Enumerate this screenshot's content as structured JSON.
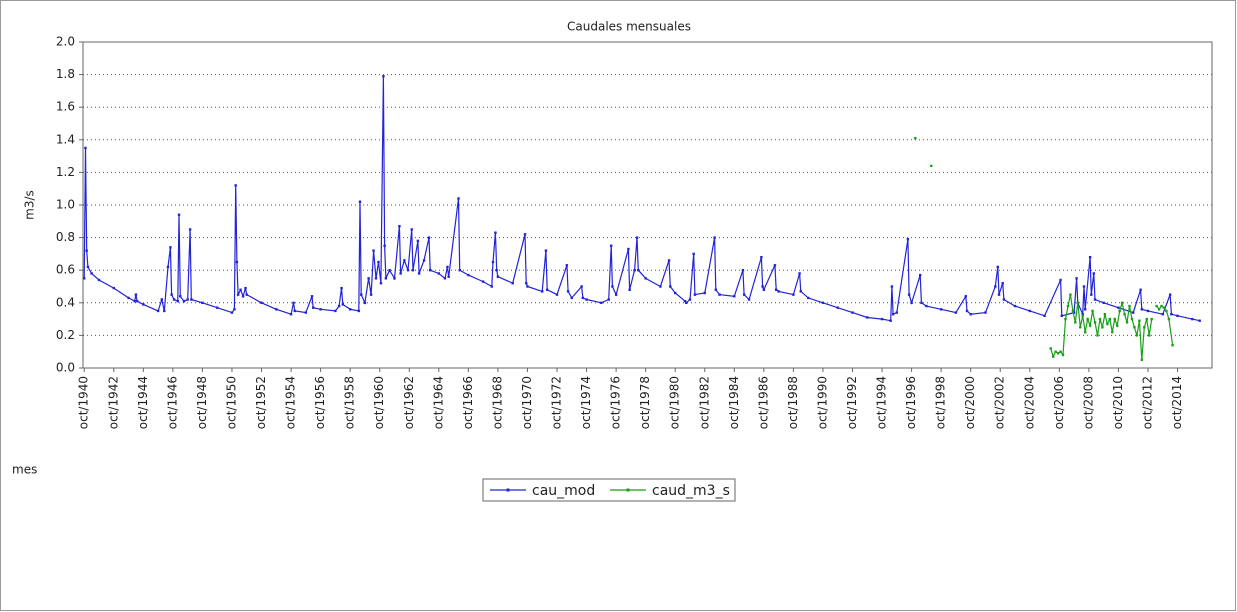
{
  "chart_data": {
    "type": "line",
    "title": "Caudales mensuales",
    "ylabel": "m3/s",
    "xlabel": "mes",
    "xlim": [
      "sep/1940",
      "feb/2017"
    ],
    "xticks": [
      "oct/1940",
      "oct/1942",
      "oct/1944",
      "oct/1946",
      "oct/1948",
      "oct/1950",
      "oct/1952",
      "oct/1954",
      "oct/1956",
      "oct/1958",
      "oct/1960",
      "oct/1962",
      "oct/1964",
      "oct/1966",
      "oct/1968",
      "oct/1970",
      "oct/1972",
      "oct/1974",
      "oct/1976",
      "oct/1978",
      "oct/1980",
      "oct/1982",
      "oct/1984",
      "oct/1986",
      "oct/1988",
      "oct/1990",
      "oct/1992",
      "oct/1994",
      "oct/1996",
      "oct/1998",
      "oct/2000",
      "oct/2002",
      "oct/2004",
      "oct/2006",
      "oct/2008",
      "oct/2010",
      "oct/2012",
      "oct/2014"
    ],
    "ylim": [
      0,
      2
    ],
    "yticks": [
      {
        "value": 0,
        "label": "0.0"
      },
      0.2,
      0.4,
      0.6,
      0.8,
      {
        "value": 1,
        "label": "1.0"
      },
      1.2,
      1.4,
      1.6,
      1.8,
      {
        "value": 2,
        "label": "2.0"
      }
    ],
    "grid": true,
    "legend": "bottom",
    "series": [
      {
        "name": "cau_mod",
        "color": "#2323d8",
        "x": [
          "oct/1940",
          "nov/1940",
          "dic/1940",
          "ene/1941",
          "abr/1941",
          "oct/1941",
          "oct/1942",
          "oct/1943",
          "mar/1944",
          "abr/1944",
          "may/1944",
          "oct/1944",
          "oct/1945",
          "ene/1946",
          "mar/1946",
          "jun/1946",
          "ago/1946",
          "sep/1946",
          "nov/1946",
          "feb/1947",
          "mar/1947",
          "abr/1947",
          "jul/1947",
          "oct/1947",
          "dic/1947",
          "ene/1948",
          "oct/1948",
          "oct/1949",
          "oct/1950",
          "dic/1950",
          "ene/1951",
          "feb/1951",
          "mar/1951",
          "may/1951",
          "jul/1951",
          "sep/1951",
          "oct/1951",
          "oct/1952",
          "oct/1953",
          "oct/1954",
          "dic/1954",
          "ene/1955",
          "oct/1955",
          "mar/1956",
          "abr/1956",
          "oct/1956",
          "oct/1957",
          "ene/1958",
          "mar/1958",
          "abr/1958",
          "oct/1958",
          "may/1959",
          "jun/1959",
          "jul/1959",
          "oct/1959",
          "ene/1960",
          "mar/1960",
          "may/1960",
          "jul/1960",
          "sep/1960",
          "nov/1960",
          "ene/1961",
          "feb/1961",
          "mar/1961",
          "jun/1961",
          "oct/1961",
          "feb/1962",
          "mar/1962",
          "jun/1962",
          "sep/1962",
          "dic/1962",
          "ene/1963",
          "may/1963",
          "jun/1963",
          "oct/1963",
          "feb/1964",
          "mar/1964",
          "oct/1964",
          "mar/1965",
          "may/1965",
          "jun/1965",
          "feb/1966",
          "mar/1966",
          "oct/1966",
          "oct/1967",
          "may/1968",
          "jun/1968",
          "ago/1968",
          "sep/1968",
          "oct/1968",
          "oct/1969",
          "ago/1970",
          "sep/1970",
          "oct/1970",
          "oct/1971",
          "ene/1972",
          "feb/1972",
          "oct/1972",
          "jun/1973",
          "jul/1973",
          "oct/1973",
          "jun/1974",
          "jul/1974",
          "oct/1974",
          "oct/1975",
          "abr/1976",
          "jun/1976",
          "jul/1976",
          "oct/1976",
          "ago/1977",
          "sep/1977",
          "ene/1978",
          "mar/1978",
          "abr/1978",
          "oct/1978",
          "oct/1979",
          "may/1980",
          "jun/1980",
          "oct/1980",
          "jun/1981",
          "jul/1981",
          "oct/1981",
          "ene/1982",
          "feb/1982",
          "oct/1982",
          "jun/1983",
          "jul/1983",
          "oct/1983",
          "oct/1984",
          "may/1985",
          "jun/1985",
          "oct/1985",
          "ago/1986",
          "sep/1986",
          "oct/1986",
          "jul/1987",
          "ago/1987",
          "oct/1987",
          "oct/1988",
          "mar/1989",
          "abr/1989",
          "oct/1989",
          "oct/1990",
          "oct/1991",
          "oct/1992",
          "oct/1993",
          "oct/1994",
          "may/1995",
          "jun/1995",
          "jul/1995",
          "oct/1995",
          "jul/1996",
          "ago/1996",
          "oct/1996",
          "may/1997",
          "jun/1997",
          "oct/1997",
          "oct/1998",
          "oct/1999",
          "jun/2000",
          "jul/2000",
          "oct/2000",
          "oct/2001",
          "jun/2002",
          "ago/2002",
          "sep/2002",
          "dic/2002",
          "ene/2003",
          "oct/2003",
          "oct/2004",
          "oct/2005",
          "nov/2006",
          "dic/2006",
          "oct/2007",
          "dic/2007",
          "ene/2008",
          "may/2008",
          "jun/2008",
          "jul/2008",
          "nov/2008",
          "dic/2008",
          "feb/2009",
          "mar/2009",
          "oct/2009",
          "oct/2010",
          "oct/2011",
          "abr/2012",
          "may/2012",
          "oct/2012",
          "oct/2013",
          "abr/2014",
          "may/2014",
          "oct/2014",
          "oct/2015",
          "abr/2016"
        ],
        "values": [
          0.55,
          1.35,
          0.72,
          0.62,
          0.58,
          0.54,
          0.49,
          0.43,
          0.41,
          0.45,
          0.41,
          0.39,
          0.35,
          0.42,
          0.35,
          0.62,
          0.74,
          0.45,
          0.42,
          0.41,
          0.94,
          0.44,
          0.41,
          0.42,
          0.85,
          0.42,
          0.4,
          0.37,
          0.34,
          0.36,
          1.12,
          0.65,
          0.45,
          0.48,
          0.44,
          0.49,
          0.45,
          0.4,
          0.36,
          0.33,
          0.4,
          0.35,
          0.34,
          0.44,
          0.37,
          0.36,
          0.35,
          0.38,
          0.49,
          0.39,
          0.36,
          0.35,
          1.02,
          0.45,
          0.4,
          0.55,
          0.45,
          0.72,
          0.55,
          0.65,
          0.52,
          1.79,
          0.75,
          0.55,
          0.6,
          0.55,
          0.87,
          0.58,
          0.66,
          0.6,
          0.85,
          0.6,
          0.78,
          0.58,
          0.66,
          0.8,
          0.6,
          0.58,
          0.55,
          0.62,
          0.56,
          1.04,
          0.6,
          0.57,
          0.53,
          0.5,
          0.65,
          0.83,
          0.6,
          0.56,
          0.52,
          0.82,
          0.52,
          0.5,
          0.47,
          0.72,
          0.48,
          0.45,
          0.63,
          0.47,
          0.43,
          0.5,
          0.43,
          0.42,
          0.4,
          0.42,
          0.75,
          0.5,
          0.45,
          0.73,
          0.48,
          0.6,
          0.8,
          0.6,
          0.55,
          0.5,
          0.66,
          0.5,
          0.46,
          0.41,
          0.4,
          0.42,
          0.7,
          0.45,
          0.46,
          0.8,
          0.48,
          0.45,
          0.44,
          0.6,
          0.45,
          0.42,
          0.68,
          0.5,
          0.48,
          0.63,
          0.48,
          0.47,
          0.45,
          0.58,
          0.47,
          0.43,
          0.4,
          0.37,
          0.34,
          0.31,
          0.3,
          0.29,
          0.5,
          0.33,
          0.34,
          0.79,
          0.45,
          0.4,
          0.57,
          0.4,
          0.38,
          0.36,
          0.34,
          0.44,
          0.35,
          0.33,
          0.34,
          0.5,
          0.62,
          0.45,
          0.52,
          0.42,
          0.38,
          0.35,
          0.32,
          0.54,
          0.32,
          0.34,
          0.55,
          0.4,
          0.33,
          0.5,
          0.36,
          0.68,
          0.45,
          0.58,
          0.42,
          0.4,
          0.37,
          0.34,
          0.48,
          0.36,
          0.35,
          0.33,
          0.45,
          0.33,
          0.32,
          0.3,
          0.29
        ]
      },
      {
        "name": "caud_m3_s",
        "color": "#18a018",
        "x": [
          "ene/1997",
          "feb/1997",
          "feb/1998",
          "mar/1998",
          "mar/2006",
          "may/2006",
          "jul/2006",
          "sep/2006",
          "nov/2006",
          "ene/2007",
          "mar/2007",
          "may/2007",
          "jul/2007",
          "sep/2007",
          "nov/2007",
          "ene/2008",
          "mar/2008",
          "may/2008",
          "jul/2008",
          "sep/2008",
          "nov/2008",
          "ene/2009",
          "mar/2009",
          "may/2009",
          "jul/2009",
          "sep/2009",
          "nov/2009",
          "ene/2010",
          "mar/2010",
          "may/2010",
          "jul/2010",
          "sep/2010",
          "nov/2010",
          "ene/2011",
          "mar/2011",
          "may/2011",
          "jul/2011",
          "sep/2011",
          "nov/2011",
          "ene/2012",
          "mar/2012",
          "may/2012",
          "jul/2012",
          "sep/2012",
          "nov/2012",
          "ene/2013",
          "mar/2013",
          "may/2013",
          "jul/2013",
          "sep/2013",
          "nov/2013",
          "ene/2014",
          "mar/2014",
          "jun/2014"
        ],
        "values": [
          1.41,
          null,
          1.24,
          null,
          0.12,
          0.07,
          0.1,
          0.09,
          0.1,
          0.08,
          0.3,
          0.38,
          0.45,
          0.35,
          0.28,
          0.4,
          0.25,
          0.32,
          0.22,
          0.3,
          0.26,
          0.35,
          0.28,
          0.2,
          0.3,
          0.25,
          0.33,
          0.27,
          0.3,
          0.22,
          0.3,
          0.26,
          0.35,
          0.4,
          0.33,
          0.28,
          0.38,
          0.3,
          0.25,
          0.2,
          0.29,
          0.05,
          0.25,
          0.3,
          0.2,
          0.3,
          null,
          0.38,
          0.36,
          0.38,
          0.37,
          0.35,
          0.3,
          0.14
        ]
      }
    ]
  }
}
